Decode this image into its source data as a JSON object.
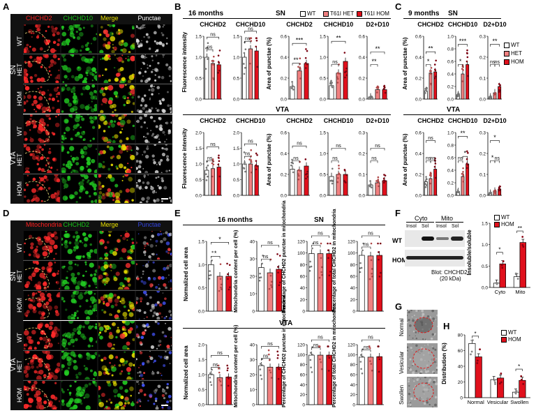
{
  "panels": {
    "a": "A",
    "b": "B",
    "c": "C",
    "d": "D",
    "e": "E",
    "f": "F",
    "g": "G",
    "h": "H"
  },
  "colors": {
    "wt": "#ffffff",
    "het": "#f08080",
    "hom": "#e0101c",
    "green": "#19c819",
    "yellow": "#e8e000",
    "blue": "#3344dd",
    "red": "#ff2020"
  },
  "panel_a": {
    "headers": [
      "CHCHD2",
      "CHCHD10",
      "Merge",
      "Punctae"
    ],
    "header_colors": [
      "#ff2020",
      "#19c819",
      "#e8e000",
      "#ffffff"
    ],
    "groups": [
      "SN",
      "VTA"
    ],
    "rows": [
      "WT",
      "HET",
      "HOM",
      "WT",
      "HET",
      "HOM"
    ]
  },
  "panel_d": {
    "headers": [
      "Mitochondria",
      "CHCHD2",
      "Merge",
      "Punctae"
    ],
    "header_colors": [
      "#ff2020",
      "#19c819",
      "#e8e000",
      "#3344dd"
    ],
    "groups": [
      "SN",
      "VTA"
    ],
    "rows": [
      "WT",
      "HET",
      "HOM",
      "WT",
      "HET",
      "HOM"
    ]
  },
  "panel_b": {
    "age": "16 months",
    "region_top": "SN",
    "region_bottom": "VTA",
    "legend": [
      "WT",
      "T61I HET",
      "T61I HOM"
    ],
    "ylabel_left": "Fluorescence intensity",
    "ylabel_right": "Area of punctae (%)"
  },
  "panel_c": {
    "age": "9 months",
    "region_top": "SN",
    "region_bottom": "VTA",
    "legend": [
      "WT",
      "HET",
      "HOM"
    ],
    "ylabel": "Area of punctae (%)"
  },
  "panel_e": {
    "age": "16 months",
    "region_top": "SN",
    "region_bottom": "VTA",
    "ylabels": [
      "Normalized cell area",
      "Mitochondria content per cell (%)",
      "Percentage of CHCHD2 punctae in mitochondria",
      "Percentage of total CHCHD2 in mitochondria"
    ]
  },
  "panel_f": {
    "fractions": [
      "Cyto",
      "Mito"
    ],
    "lanes": [
      "Insol",
      "Sol",
      "Insol",
      "Sol"
    ],
    "rows": [
      "WT",
      "HOM"
    ],
    "blot": "Blot: CHCHD2",
    "kda": "(20 kDa)",
    "legend": [
      "WT",
      "HOM"
    ],
    "ylabel": "Insoluble/soluble"
  },
  "panel_g": {
    "labels": [
      "Normal",
      "Vesicular",
      "Swollen"
    ]
  },
  "panel_h": {
    "legend": [
      "WT",
      "HOM"
    ],
    "ylabel": "Distribution (%)",
    "categories": [
      "Normal",
      "Vesicular",
      "Swollen"
    ]
  },
  "chart_data": [
    {
      "type": "bar",
      "id": "b-sn-chchd2",
      "title": "CHCHD2",
      "ylabel": "Fluorescence intensity",
      "ylim": [
        0,
        1.5
      ],
      "yticks": [
        "0.0",
        "0.5",
        "1.0",
        "1.5"
      ],
      "categories": [
        "WT",
        "HET",
        "HOM"
      ],
      "values": [
        1.0,
        0.85,
        0.82
      ],
      "sig": [
        {
          "from": 0,
          "to": 1,
          "label": "ns"
        },
        {
          "from": 0,
          "to": 2,
          "label": "ns"
        }
      ]
    },
    {
      "type": "bar",
      "id": "b-sn-chchd10",
      "title": "CHCHD10",
      "ylim": [
        0,
        1.5
      ],
      "yticks": [
        "0.0",
        "0.5",
        "1.0",
        "1.5"
      ],
      "categories": [
        "WT",
        "HET",
        "HOM"
      ],
      "values": [
        1.0,
        1.2,
        1.15
      ],
      "sig": [
        {
          "from": 0,
          "to": 1,
          "label": "ns"
        },
        {
          "from": 0,
          "to": 2,
          "label": "ns"
        }
      ]
    },
    {
      "type": "bar",
      "id": "b-sn-p-chchd2",
      "title": "CHCHD2",
      "ylabel": "Area of punctae (%)",
      "ylim": [
        0,
        0.6
      ],
      "yticks": [
        "0.0",
        "0.2",
        "0.4",
        "0.6"
      ],
      "categories": [
        "WT",
        "HET",
        "HOM"
      ],
      "values": [
        0.12,
        0.27,
        0.34
      ],
      "sig": [
        {
          "from": 0,
          "to": 1,
          "label": "**"
        },
        {
          "from": 0,
          "to": 2,
          "label": "***"
        }
      ]
    },
    {
      "type": "bar",
      "id": "b-sn-p-chchd10",
      "title": "CHCHD10",
      "ylim": [
        0,
        1.5
      ],
      "yticks": [
        "0.0",
        "0.5",
        "1.0",
        "1.5"
      ],
      "categories": [
        "WT",
        "HET",
        "HOM"
      ],
      "values": [
        0.32,
        0.62,
        0.9
      ],
      "sig": [
        {
          "from": 0,
          "to": 1,
          "label": "ns"
        },
        {
          "from": 0,
          "to": 2,
          "label": "**"
        }
      ]
    },
    {
      "type": "bar",
      "id": "b-sn-p-d2d10",
      "title": "D2+D10",
      "ylim": [
        0,
        0.6
      ],
      "yticks": [
        "0.0",
        "0.2",
        "0.4",
        "0.6"
      ],
      "categories": [
        "WT",
        "HET",
        "HOM"
      ],
      "values": [
        0.02,
        0.09,
        0.09
      ],
      "sig": [
        {
          "from": 0,
          "to": 1,
          "label": "**"
        },
        {
          "from": 0,
          "to": 2,
          "label": "**"
        }
      ]
    },
    {
      "type": "bar",
      "id": "b-vta-chchd2",
      "title": "CHCHD2",
      "ylabel": "Fluorescence intensity",
      "ylim": [
        0,
        2.0
      ],
      "yticks": [
        "0.0",
        "0.5",
        "1.0",
        "1.5",
        "2.0"
      ],
      "categories": [
        "WT",
        "HET",
        "HOM"
      ],
      "values": [
        0.8,
        0.85,
        0.9
      ],
      "sig": [
        {
          "from": 0,
          "to": 1,
          "label": "ns"
        },
        {
          "from": 0,
          "to": 2,
          "label": "ns"
        }
      ]
    },
    {
      "type": "bar",
      "id": "b-vta-chchd10",
      "title": "CHCHD10",
      "ylim": [
        0,
        2.0
      ],
      "yticks": [
        "0.0",
        "0.5",
        "1.0",
        "1.5",
        "2.0"
      ],
      "categories": [
        "WT",
        "HET",
        "HOM"
      ],
      "values": [
        1.0,
        1.0,
        0.95
      ],
      "sig": [
        {
          "from": 0,
          "to": 1,
          "label": "ns"
        },
        {
          "from": 0,
          "to": 2,
          "label": "ns"
        }
      ]
    },
    {
      "type": "bar",
      "id": "b-vta-p-chchd2",
      "title": "CHCHD2",
      "ylabel": "Area of punctae (%)",
      "ylim": [
        0,
        0.6
      ],
      "yticks": [
        "0.0",
        "0.2",
        "0.4",
        "0.6"
      ],
      "categories": [
        "WT",
        "HET",
        "HOM"
      ],
      "values": [
        0.25,
        0.24,
        0.28
      ],
      "sig": [
        {
          "from": 0,
          "to": 1,
          "label": "ns"
        },
        {
          "from": 0,
          "to": 2,
          "label": "ns"
        }
      ]
    },
    {
      "type": "bar",
      "id": "b-vta-p-chchd10",
      "title": "CHCHD10",
      "ylim": [
        0,
        1.5
      ],
      "yticks": [
        "0.0",
        "0.5",
        "1.0",
        "1.5"
      ],
      "categories": [
        "WT",
        "HET",
        "HOM"
      ],
      "values": [
        0.45,
        0.5,
        0.5
      ],
      "sig": [
        {
          "from": 0,
          "to": 1,
          "label": "ns"
        },
        {
          "from": 0,
          "to": 2,
          "label": "ns"
        }
      ]
    },
    {
      "type": "bar",
      "id": "b-vta-p-d2d10",
      "title": "D2+D10",
      "ylim": [
        0,
        0.3
      ],
      "yticks": [
        "0.0",
        "0.1",
        "0.2",
        "0.3"
      ],
      "categories": [
        "WT",
        "HET",
        "HOM"
      ],
      "values": [
        0.05,
        0.06,
        0.07
      ],
      "sig": [
        {
          "from": 0,
          "to": 1,
          "label": "ns"
        },
        {
          "from": 0,
          "to": 2,
          "label": "ns"
        }
      ]
    },
    {
      "type": "bar",
      "id": "c-sn-chchd2",
      "title": "CHCHD2",
      "ylabel": "Area of punctae (%)",
      "ylim": [
        0,
        0.6
      ],
      "yticks": [
        "0.0",
        "0.2",
        "0.4",
        "0.6"
      ],
      "categories": [
        "WT",
        "HET",
        "HOM"
      ],
      "values": [
        0.08,
        0.25,
        0.26
      ],
      "sig": [
        {
          "from": 0,
          "to": 1,
          "label": "*"
        },
        {
          "from": 0,
          "to": 2,
          "label": "**"
        }
      ]
    },
    {
      "type": "bar",
      "id": "c-sn-chchd10",
      "title": "CHCHD10",
      "ylim": [
        0,
        1.0
      ],
      "yticks": [
        "0.0",
        "0.2",
        "0.4",
        "0.6",
        "0.8",
        "1.0"
      ],
      "categories": [
        "WT",
        "HET",
        "HOM"
      ],
      "values": [
        0.07,
        0.4,
        0.55
      ],
      "sig": [
        {
          "from": 0,
          "to": 1,
          "label": "*"
        },
        {
          "from": 0,
          "to": 2,
          "label": "***"
        }
      ]
    },
    {
      "type": "bar",
      "id": "c-sn-d2d10",
      "title": "D2+D10",
      "ylim": [
        0,
        0.3
      ],
      "yticks": [
        "0.0",
        "0.1",
        "0.2",
        "0.3"
      ],
      "categories": [
        "WT",
        "HET",
        "HOM"
      ],
      "values": [
        0.01,
        0.03,
        0.06
      ],
      "sig": [
        {
          "from": 0,
          "to": 1,
          "label": "ns"
        },
        {
          "from": 1,
          "to": 2,
          "label": "ns"
        },
        {
          "from": 0,
          "to": 2,
          "label": "**"
        }
      ]
    },
    {
      "type": "bar",
      "id": "c-vta-chchd2",
      "title": "CHCHD2",
      "ylabel": "Area of punctae (%)",
      "ylim": [
        0,
        0.6
      ],
      "yticks": [
        "0.0",
        "0.2",
        "0.4",
        "0.6"
      ],
      "categories": [
        "WT",
        "HET",
        "HOM"
      ],
      "values": [
        0.13,
        0.16,
        0.25
      ],
      "sig": [
        {
          "from": 0,
          "to": 1,
          "label": "ns"
        },
        {
          "from": 1,
          "to": 2,
          "label": "ns"
        },
        {
          "from": 0,
          "to": 2,
          "label": "ns"
        }
      ]
    },
    {
      "type": "bar",
      "id": "c-vta-chchd10",
      "title": "CHCHD10",
      "ylim": [
        0,
        1.0
      ],
      "yticks": [
        "0.0",
        "0.2",
        "0.4",
        "0.6",
        "0.8",
        "1.0"
      ],
      "categories": [
        "WT",
        "HET",
        "HOM"
      ],
      "values": [
        0.06,
        0.3,
        0.5
      ],
      "sig": [
        {
          "from": 0,
          "to": 1,
          "label": "ns"
        },
        {
          "from": 1,
          "to": 2,
          "label": "*"
        },
        {
          "from": 0,
          "to": 2,
          "label": "**"
        }
      ]
    },
    {
      "type": "bar",
      "id": "c-vta-d2d10",
      "title": "D2+D10",
      "ylim": [
        0,
        0.3
      ],
      "yticks": [
        "0.0",
        "0.1",
        "0.2",
        "0.3"
      ],
      "categories": [
        "WT",
        "HET",
        "HOM"
      ],
      "values": [
        0.01,
        0.02,
        0.03
      ],
      "sig": [
        {
          "from": 0,
          "to": 1,
          "label": "*"
        },
        {
          "from": 1,
          "to": 2,
          "label": "ns"
        },
        {
          "from": 0,
          "to": 2,
          "label": "*"
        }
      ]
    },
    {
      "type": "bar",
      "id": "e-sn-1",
      "ylabel": "Normalized cell area",
      "ylim": [
        0,
        1.5
      ],
      "yticks": [
        "0.0",
        "0.5",
        "1.0",
        "1.5"
      ],
      "categories": [
        "WT",
        "HET",
        "HOM"
      ],
      "values": [
        1.0,
        0.75,
        0.75
      ],
      "sig": [
        {
          "from": 0,
          "to": 1,
          "label": "*"
        },
        {
          "from": 0,
          "to": 2,
          "label": "*"
        }
      ]
    },
    {
      "type": "bar",
      "id": "e-sn-2",
      "ylabel": "Mitochondria content per cell (%)",
      "ylim": [
        0,
        40
      ],
      "yticks": [
        "0",
        "10",
        "20",
        "30",
        "40"
      ],
      "categories": [
        "WT",
        "HET",
        "HOM"
      ],
      "values": [
        25,
        22,
        24
      ],
      "sig": [
        {
          "from": 0,
          "to": 1,
          "label": "ns"
        },
        {
          "from": 0,
          "to": 2,
          "label": "ns"
        }
      ]
    },
    {
      "type": "bar",
      "id": "e-sn-3",
      "ylabel": "Percentage of CHCHD2 punctae in mitochondria",
      "ylim": [
        0,
        120
      ],
      "yticks": [
        "0",
        "20",
        "40",
        "60",
        "80",
        "100",
        "120"
      ],
      "categories": [
        "WT",
        "HET",
        "HOM"
      ],
      "values": [
        99,
        99,
        99
      ],
      "sig": [
        {
          "from": 0,
          "to": 1,
          "label": "ns"
        },
        {
          "from": 0,
          "to": 2,
          "label": "ns"
        }
      ]
    },
    {
      "type": "bar",
      "id": "e-sn-4",
      "ylabel": "Percentage of total CHCHD2 in mitochondria",
      "ylim": [
        0,
        120
      ],
      "yticks": [
        "0",
        "20",
        "40",
        "60",
        "80",
        "100",
        "120"
      ],
      "categories": [
        "WT",
        "HET",
        "HOM"
      ],
      "values": [
        96,
        95,
        96
      ],
      "sig": [
        {
          "from": 0,
          "to": 1,
          "label": "ns"
        },
        {
          "from": 0,
          "to": 2,
          "label": "ns"
        }
      ]
    },
    {
      "type": "bar",
      "id": "e-vta-1",
      "ylabel": "Normalized cell area",
      "ylim": [
        0,
        2.0
      ],
      "yticks": [
        "0.0",
        "0.5",
        "1.0",
        "1.5",
        "2.0"
      ],
      "categories": [
        "WT",
        "HET",
        "HOM"
      ],
      "values": [
        1.0,
        0.9,
        0.92
      ],
      "sig": [
        {
          "from": 0,
          "to": 1,
          "label": "ns"
        },
        {
          "from": 0,
          "to": 2,
          "label": "ns"
        }
      ]
    },
    {
      "type": "bar",
      "id": "e-vta-2",
      "ylabel": "Mitochondria content per cell (%)",
      "ylim": [
        0,
        40
      ],
      "yticks": [
        "0",
        "10",
        "20",
        "30",
        "40"
      ],
      "categories": [
        "WT",
        "HET",
        "HOM"
      ],
      "values": [
        26,
        25,
        25
      ],
      "sig": [
        {
          "from": 0,
          "to": 1,
          "label": "ns"
        },
        {
          "from": 0,
          "to": 2,
          "label": "ns"
        }
      ]
    },
    {
      "type": "bar",
      "id": "e-vta-3",
      "ylabel": "Percentage of CHCHD2 punctae in mitochondria",
      "ylim": [
        0,
        120
      ],
      "yticks": [
        "0",
        "20",
        "40",
        "60",
        "80",
        "100",
        "120"
      ],
      "categories": [
        "WT",
        "HET",
        "HOM"
      ],
      "values": [
        99,
        99,
        99
      ],
      "sig": [
        {
          "from": 0,
          "to": 1,
          "label": "ns"
        },
        {
          "from": 0,
          "to": 2,
          "label": "ns"
        }
      ]
    },
    {
      "type": "bar",
      "id": "e-vta-4",
      "ylabel": "Percentage of total CHCHD2 in mitochondria",
      "ylim": [
        0,
        120
      ],
      "yticks": [
        "0",
        "20",
        "40",
        "60",
        "80",
        "100",
        "120"
      ],
      "categories": [
        "WT",
        "HET",
        "HOM"
      ],
      "values": [
        95,
        95,
        96
      ],
      "sig": [
        {
          "from": 0,
          "to": 1,
          "label": "ns"
        },
        {
          "from": 0,
          "to": 2,
          "label": "ns"
        }
      ]
    },
    {
      "type": "bar",
      "id": "f-ratio",
      "ylabel": "Insoluble/soluble",
      "ylim": [
        0,
        1.5
      ],
      "yticks": [
        "0.0",
        "0.5",
        "1.0",
        "1.5"
      ],
      "categories": [
        "Cyto",
        "Mito"
      ],
      "series": [
        {
          "name": "WT",
          "values": [
            0.1,
            0.25
          ]
        },
        {
          "name": "HOM",
          "values": [
            0.55,
            1.05
          ]
        }
      ],
      "sig": [
        {
          "group": 0,
          "label": "*"
        },
        {
          "group": 1,
          "label": "**"
        }
      ]
    },
    {
      "type": "bar",
      "id": "h-dist",
      "ylabel": "Distribution (%)",
      "ylim": [
        0,
        80
      ],
      "yticks": [
        "0",
        "20",
        "40",
        "60",
        "80"
      ],
      "categories": [
        "Normal",
        "Vesicular",
        "Swollen"
      ],
      "series": [
        {
          "name": "WT",
          "values": [
            69,
            23,
            7
          ]
        },
        {
          "name": "HOM",
          "values": [
            52,
            25,
            22
          ]
        }
      ],
      "sig": [
        {
          "group": 0,
          "label": "*"
        },
        {
          "group": 2,
          "label": "*"
        }
      ]
    }
  ]
}
